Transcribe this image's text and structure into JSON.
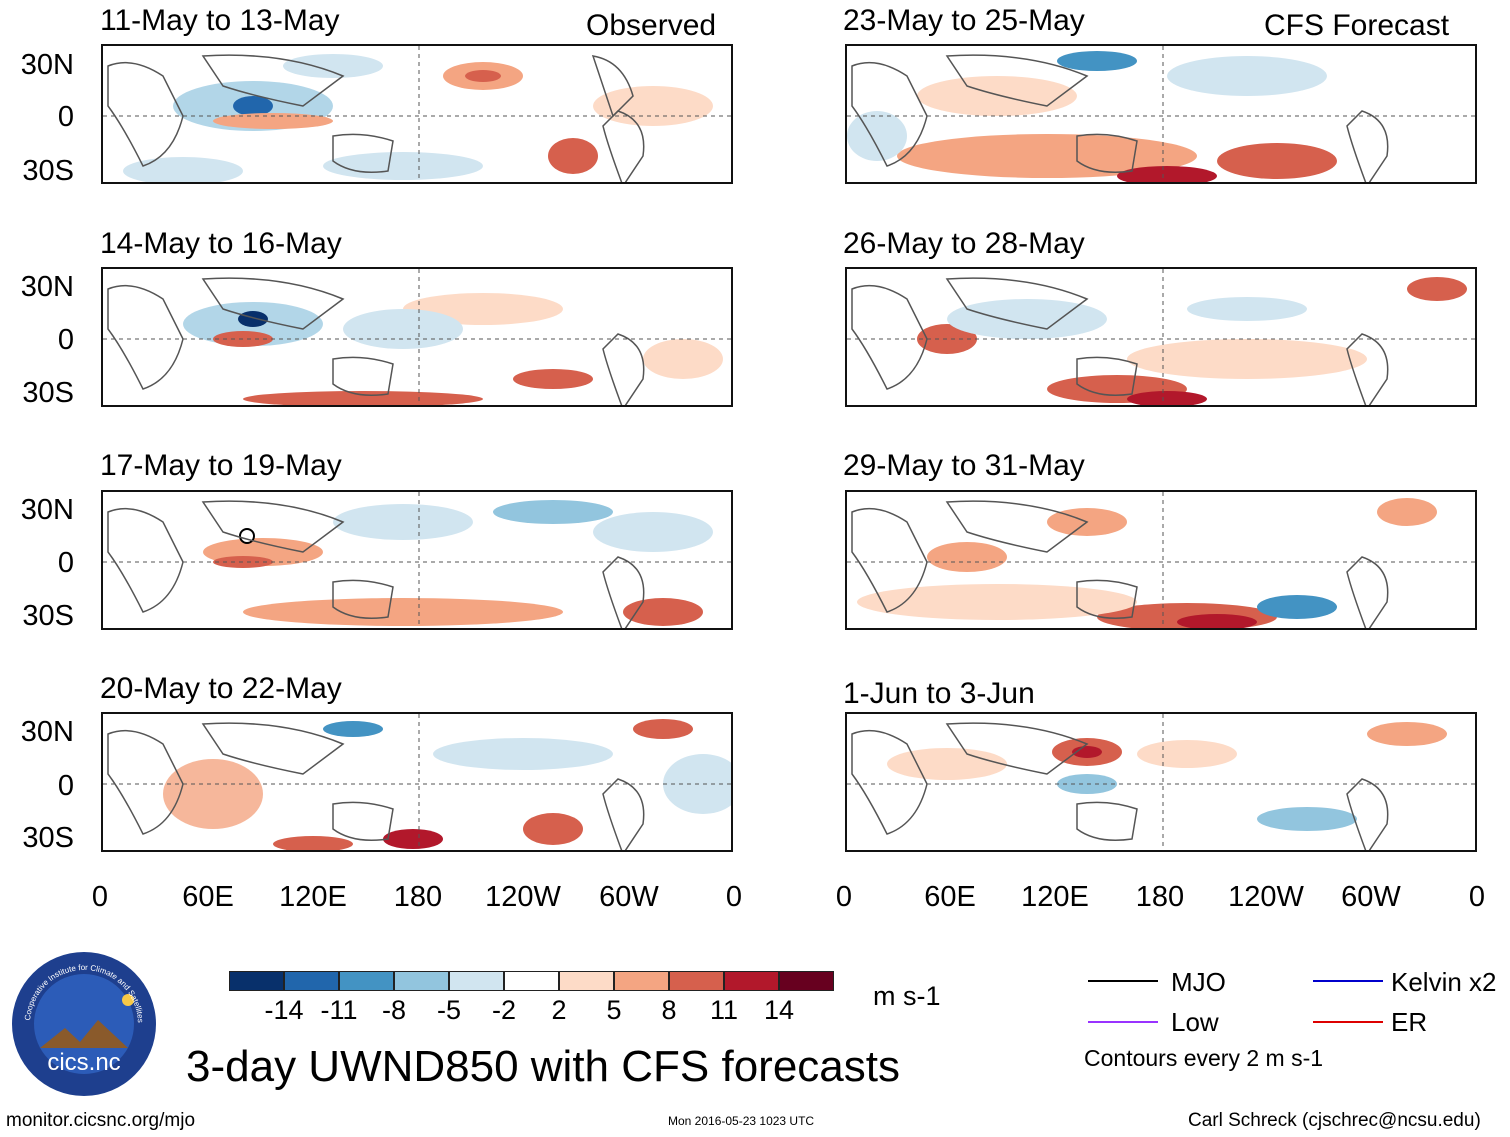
{
  "figure": {
    "main_title": "3-day UWND850 with CFS forecasts",
    "observed_label": "Observed",
    "forecast_label": "CFS Forecast",
    "url_text": "monitor.cicsnc.org/mjo",
    "timestamp": "Mon 2016-05-23 1023 UTC",
    "author": "Carl Schreck (cjschrec@ncsu.edu)",
    "logo": {
      "ring_text": "Cooperative Institute for Climate and Satellites",
      "name": "cics.nc"
    }
  },
  "panels_observed": [
    {
      "title": "11-May to 13-May"
    },
    {
      "title": "14-May to 16-May"
    },
    {
      "title": "17-May to 19-May"
    },
    {
      "title": "20-May to 22-May"
    }
  ],
  "panels_forecast": [
    {
      "title": "23-May to 25-May"
    },
    {
      "title": "26-May to 28-May"
    },
    {
      "title": "29-May to 31-May"
    },
    {
      "title": "1-Jun to 3-Jun"
    }
  ],
  "axes": {
    "lat_labels": [
      "30N",
      "0",
      "30S"
    ],
    "lon_labels": [
      "0",
      "60E",
      "120E",
      "180",
      "120W",
      "60W",
      "0"
    ]
  },
  "colorbar": {
    "units": "m s-1",
    "labels": [
      "-14",
      "-11",
      "-8",
      "-5",
      "-2",
      "2",
      "5",
      "8",
      "11",
      "14"
    ],
    "colors": [
      "#08306b",
      "#2166ac",
      "#4393c3",
      "#92c5de",
      "#d1e5f0",
      "#ffffff",
      "#fddbc7",
      "#f4a582",
      "#d6604d",
      "#b2182b",
      "#67001f"
    ]
  },
  "legend": {
    "items": [
      {
        "label": "MJO",
        "color": "#000000"
      },
      {
        "label": "Kelvin x2",
        "color": "#0000cc"
      },
      {
        "label": "Low",
        "color": "#9933ff"
      },
      {
        "label": "ER",
        "color": "#dd0000"
      }
    ],
    "contour_note": "Contours every 2 m s-1"
  }
}
